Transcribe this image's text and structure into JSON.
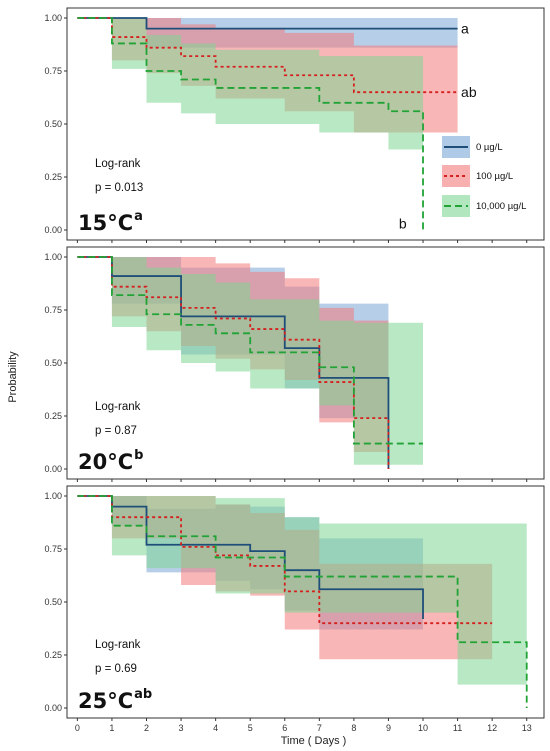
{
  "chart_data": {
    "type": "line",
    "xlabel": "Time ( Days )",
    "ylabel": "Probability",
    "xlim": [
      -0.3,
      13.5
    ],
    "ylim": [
      0,
      1
    ],
    "xticks": [
      "0",
      "1",
      "2",
      "3",
      "4",
      "5",
      "6",
      "7",
      "8",
      "9",
      "10",
      "11",
      "12",
      "13"
    ],
    "yticks": [
      "0.00",
      "0.25",
      "0.50",
      "0.75",
      "1.00"
    ],
    "legend": {
      "placement": "right",
      "entries": [
        {
          "label": "0 µg/L",
          "color": "#1f4e79",
          "dash": "solid",
          "fill": "#7aa6d6"
        },
        {
          "label": "100 µg/L",
          "color": "#d6201f",
          "dash": "dotted",
          "fill": "#f27a7a"
        },
        {
          "label": "10,000 µg/L",
          "color": "#21a336",
          "dash": "dashed",
          "fill": "#7fd694"
        }
      ]
    },
    "panels": [
      {
        "temp": "15°C",
        "temp_sup": "a",
        "test": "Log-rank",
        "p": "p = 0.013",
        "letters": [
          {
            "text": "a",
            "x": 11.1,
            "y": 0.95
          },
          {
            "text": "ab",
            "x": 11.1,
            "y": 0.65
          },
          {
            "text": "b",
            "x": 9.3,
            "y": 0.03
          }
        ],
        "series": [
          {
            "name": "0 µg/L",
            "x": [
              0,
              2,
              11
            ],
            "y": [
              1.0,
              0.95,
              0.95
            ],
            "lo": [
              1.0,
              0.86,
              0.86
            ],
            "hi": [
              1.0,
              1.0,
              1.0
            ]
          },
          {
            "name": "100 µg/L",
            "x": [
              0,
              1,
              2,
              3,
              4,
              6,
              8,
              11
            ],
            "y": [
              1.0,
              0.91,
              0.86,
              0.82,
              0.77,
              0.73,
              0.65,
              0.65
            ],
            "lo": [
              1.0,
              0.8,
              0.74,
              0.68,
              0.62,
              0.56,
              0.46,
              0.46
            ],
            "hi": [
              1.0,
              1.0,
              1.0,
              0.97,
              0.95,
              0.93,
              0.87,
              0.87
            ]
          },
          {
            "name": "10,000 µg/L",
            "x": [
              0,
              1,
              2,
              3,
              4,
              7,
              9,
              10
            ],
            "y": [
              1.0,
              0.88,
              0.75,
              0.71,
              0.67,
              0.6,
              0.56,
              0.0
            ],
            "lo": [
              1.0,
              0.76,
              0.6,
              0.55,
              0.5,
              0.46,
              0.38,
              0.0
            ],
            "hi": [
              1.0,
              1.0,
              0.92,
              0.88,
              0.85,
              0.82,
              0.82,
              0.0
            ]
          }
        ]
      },
      {
        "temp": "20°C",
        "temp_sup": "b",
        "test": "Log-rank",
        "p": "p = 0.87",
        "letters": [],
        "series": [
          {
            "name": "0 µg/L",
            "x": [
              0,
              1,
              3,
              6,
              7,
              9
            ],
            "y": [
              1.0,
              0.91,
              0.72,
              0.57,
              0.43,
              0.0
            ],
            "lo": [
              1.0,
              0.78,
              0.54,
              0.38,
              0.24,
              0.0
            ],
            "hi": [
              1.0,
              1.0,
              0.95,
              0.86,
              0.78,
              0.0
            ]
          },
          {
            "name": "100 µg/L",
            "x": [
              0,
              1,
              2,
              3,
              4,
              5,
              6,
              7,
              8,
              9
            ],
            "y": [
              1.0,
              0.86,
              0.81,
              0.76,
              0.71,
              0.66,
              0.61,
              0.41,
              0.24,
              0.0
            ],
            "lo": [
              1.0,
              0.72,
              0.65,
              0.58,
              0.52,
              0.47,
              0.42,
              0.22,
              0.08,
              0.0
            ],
            "hi": [
              1.0,
              1.0,
              1.0,
              1.0,
              0.97,
              0.93,
              0.9,
              0.76,
              0.7,
              0.0
            ]
          },
          {
            "name": "10,000 µg/L",
            "x": [
              0,
              1,
              2,
              3,
              4,
              5,
              7,
              8,
              10
            ],
            "y": [
              1.0,
              0.82,
              0.73,
              0.68,
              0.64,
              0.55,
              0.48,
              0.12,
              0.12
            ],
            "lo": [
              1.0,
              0.67,
              0.56,
              0.5,
              0.46,
              0.38,
              0.3,
              0.02,
              0.02
            ],
            "hi": [
              1.0,
              1.0,
              0.95,
              0.92,
              0.88,
              0.8,
              0.7,
              0.69,
              0.69
            ]
          }
        ]
      },
      {
        "temp": "25°C",
        "temp_sup": "ab",
        "test": "Log-rank",
        "p": "p = 0.69",
        "letters": [],
        "series": [
          {
            "name": "0 µg/L",
            "x": [
              0,
              1,
              2,
              4,
              5,
              6,
              7,
              10
            ],
            "y": [
              1.0,
              0.95,
              0.77,
              0.77,
              0.74,
              0.65,
              0.56,
              0.42
            ],
            "lo": [
              1.0,
              0.86,
              0.64,
              0.6,
              0.56,
              0.46,
              0.37,
              0.37
            ],
            "hi": [
              1.0,
              1.0,
              0.94,
              0.96,
              0.95,
              0.9,
              0.8,
              0.8
            ]
          },
          {
            "name": "100 µg/L",
            "x": [
              0,
              1,
              3,
              4,
              5,
              6,
              7,
              12
            ],
            "y": [
              1.0,
              0.9,
              0.76,
              0.72,
              0.67,
              0.55,
              0.4,
              0.4
            ],
            "lo": [
              1.0,
              0.8,
              0.58,
              0.55,
              0.53,
              0.37,
              0.23,
              0.23
            ],
            "hi": [
              1.0,
              1.0,
              1.0,
              0.96,
              0.92,
              0.84,
              0.68,
              0.68
            ]
          },
          {
            "name": "10,000 µg/L",
            "x": [
              0,
              1,
              2,
              4,
              6,
              7,
              11,
              12,
              13
            ],
            "y": [
              1.0,
              0.86,
              0.81,
              0.71,
              0.62,
              0.62,
              0.31,
              0.31,
              0.0
            ],
            "lo": [
              1.0,
              0.72,
              0.66,
              0.54,
              0.45,
              0.45,
              0.11,
              0.11,
              0.0
            ],
            "hi": [
              1.0,
              1.0,
              1.0,
              0.99,
              0.9,
              0.87,
              0.87,
              0.87,
              0.0
            ]
          }
        ]
      }
    ]
  }
}
